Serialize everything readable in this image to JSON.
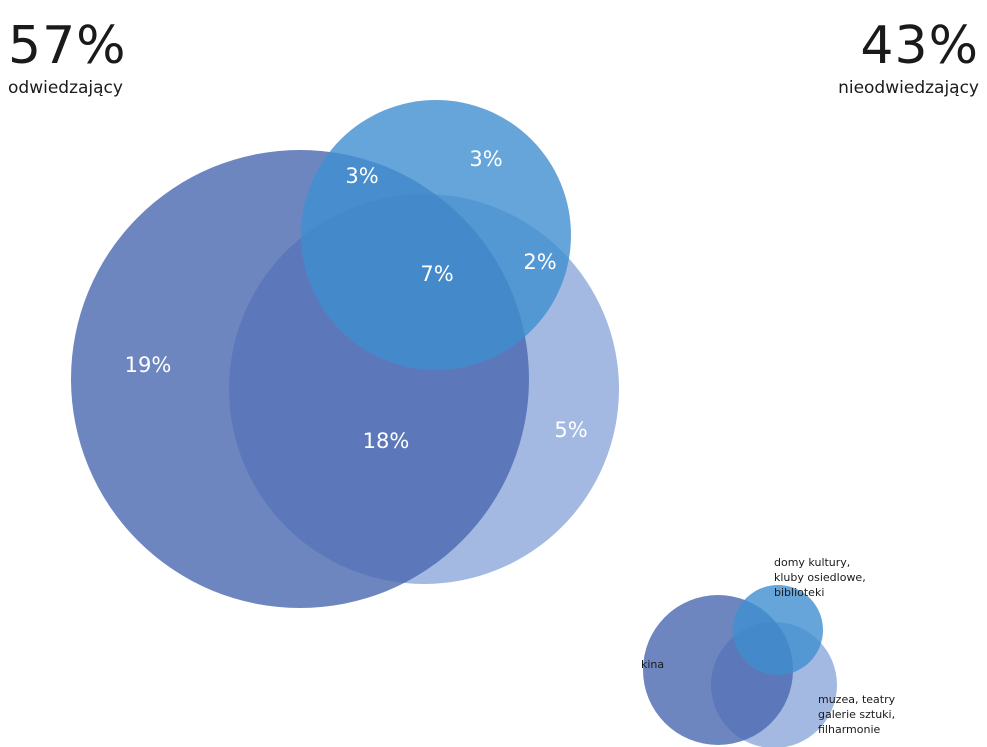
{
  "visitors": {
    "percent": "57%",
    "label": "odwiedzający"
  },
  "non_visitors": {
    "percent": "43%",
    "label": "nieodwiedzający"
  },
  "colors": {
    "kina": "#4a68b0",
    "domy_kultury": "#3f8fcf",
    "muzea": "#7c9bd6",
    "overlap_all": "#2e56a8"
  },
  "regions": {
    "kina_only": "19%",
    "kina_muzea": "18%",
    "muzea_only": "5%",
    "domy_only": "3%",
    "kina_domy": "3%",
    "domy_muzea": "2%",
    "all_three": "7%"
  },
  "legend": {
    "kina": "kina",
    "domy_kultury": [
      "domy kultury,",
      "kluby osiedlowe,",
      "biblioteki"
    ],
    "muzea": [
      "muzea, teatry",
      "galerie sztuki,",
      "filharmonie"
    ]
  }
}
